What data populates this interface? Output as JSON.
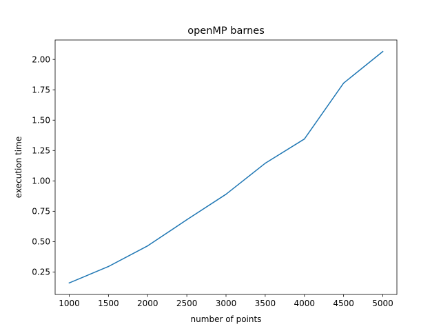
{
  "chart_data": {
    "type": "line",
    "title": "openMP barnes",
    "xlabel": "number of points",
    "ylabel": "execution time",
    "x": [
      1000,
      1500,
      2000,
      2500,
      3000,
      3500,
      4000,
      4500,
      5000
    ],
    "series": [
      {
        "values": [
          0.16,
          0.295,
          0.465,
          0.68,
          0.89,
          1.145,
          1.345,
          1.805,
          2.065
        ],
        "color": "#1f77b4"
      }
    ],
    "xlim": [
      820,
      5180
    ],
    "ylim": [
      0.065,
      2.16
    ],
    "xticks": [
      1000,
      1500,
      2000,
      2500,
      3000,
      3500,
      4000,
      4500,
      5000
    ],
    "yticks": [
      0.25,
      0.5,
      0.75,
      1.0,
      1.25,
      1.5,
      1.75,
      2.0
    ],
    "xtick_labels": [
      "1000",
      "1500",
      "2000",
      "2500",
      "3000",
      "3500",
      "4000",
      "4500",
      "5000"
    ],
    "ytick_labels": [
      "0.25",
      "0.50",
      "0.75",
      "1.00",
      "1.25",
      "1.50",
      "1.75",
      "2.00"
    ],
    "grid": false,
    "legend": "none"
  }
}
